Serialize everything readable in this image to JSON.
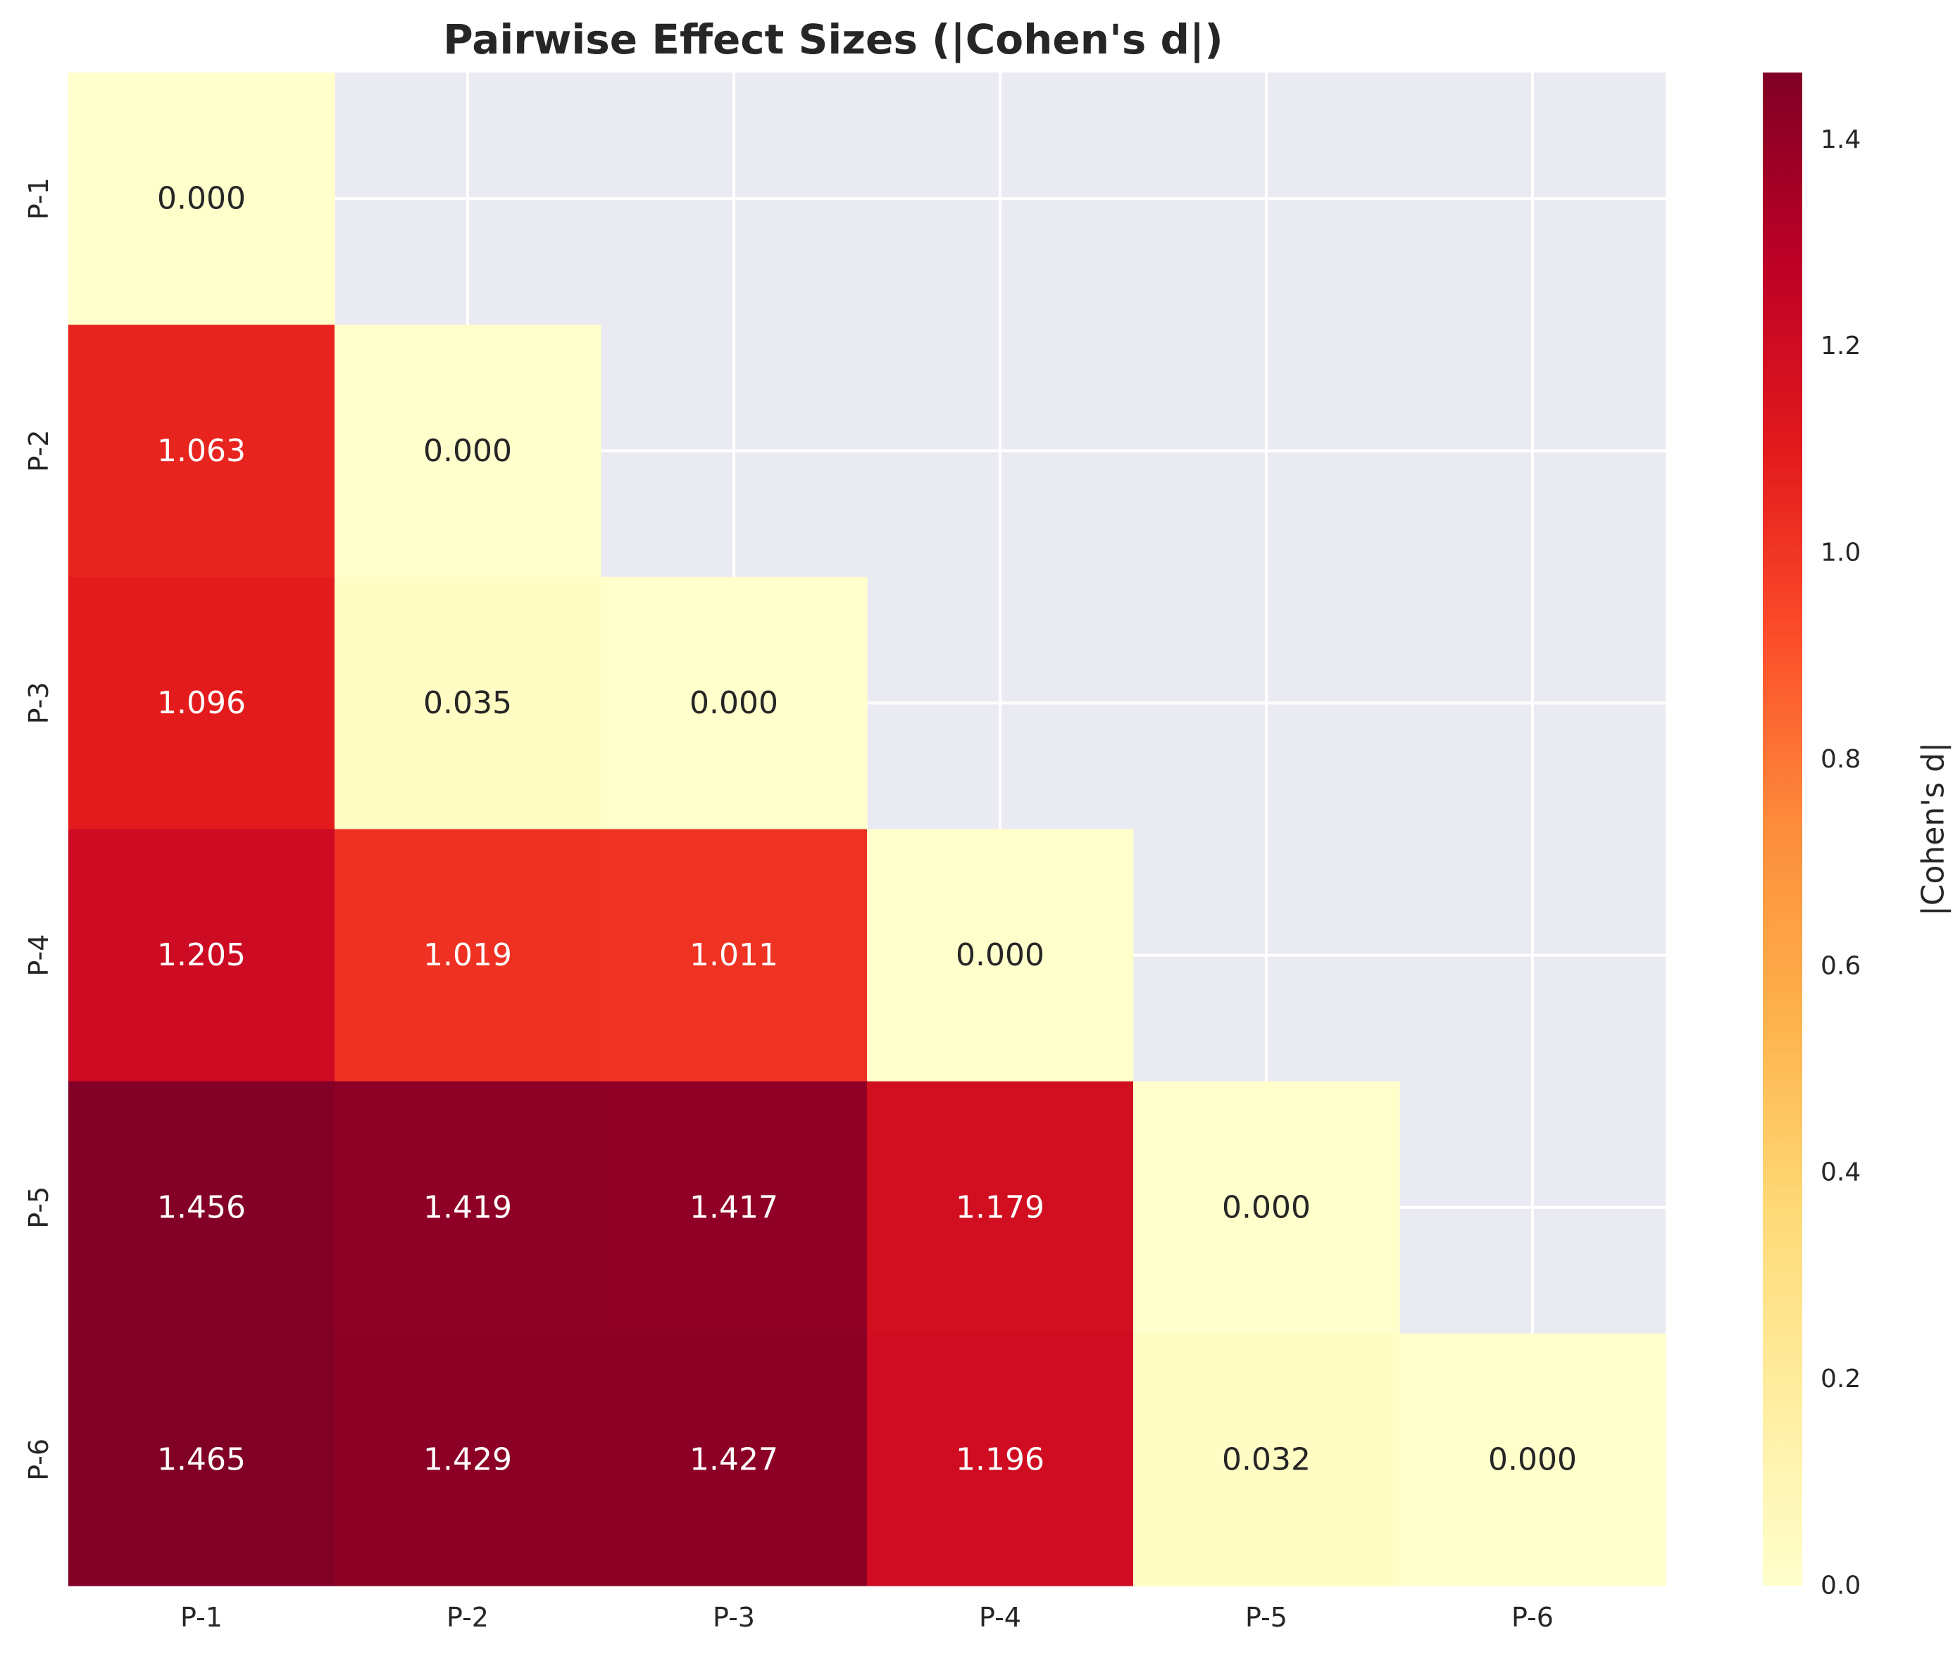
{
  "chart_data": {
    "type": "heatmap",
    "title": "Pairwise Effect Sizes (|Cohen's d|)",
    "xlabel": "",
    "ylabel": "",
    "rows": [
      "P-1",
      "P-2",
      "P-3",
      "P-4",
      "P-5",
      "P-6"
    ],
    "columns": [
      "P-1",
      "P-2",
      "P-3",
      "P-4",
      "P-5",
      "P-6"
    ],
    "mask": "upper-triangle",
    "values": [
      [
        0.0,
        null,
        null,
        null,
        null,
        null
      ],
      [
        1.063,
        0.0,
        null,
        null,
        null,
        null
      ],
      [
        1.096,
        0.035,
        0.0,
        null,
        null,
        null
      ],
      [
        1.205,
        1.019,
        1.011,
        0.0,
        null,
        null
      ],
      [
        1.456,
        1.419,
        1.417,
        1.179,
        0.0,
        null
      ],
      [
        1.465,
        1.429,
        1.427,
        1.196,
        0.032,
        0.0
      ]
    ],
    "colormap": "YlOrRd",
    "colorbar": {
      "label": "|Cohen's d|",
      "range": [
        0,
        1.465
      ],
      "ticks": [
        "0.0",
        "0.2",
        "0.4",
        "0.6",
        "0.8",
        "1.0",
        "1.2",
        "1.4"
      ]
    },
    "grid": true
  },
  "colors": {
    "background": "#eaeaf2",
    "grid": "#ffffff",
    "text": "#262626",
    "stops": [
      "#ffffcc",
      "#ffeda0",
      "#fed976",
      "#feb24c",
      "#fd8d3c",
      "#fc4e2a",
      "#e31a1c",
      "#bd0026",
      "#800026"
    ]
  }
}
